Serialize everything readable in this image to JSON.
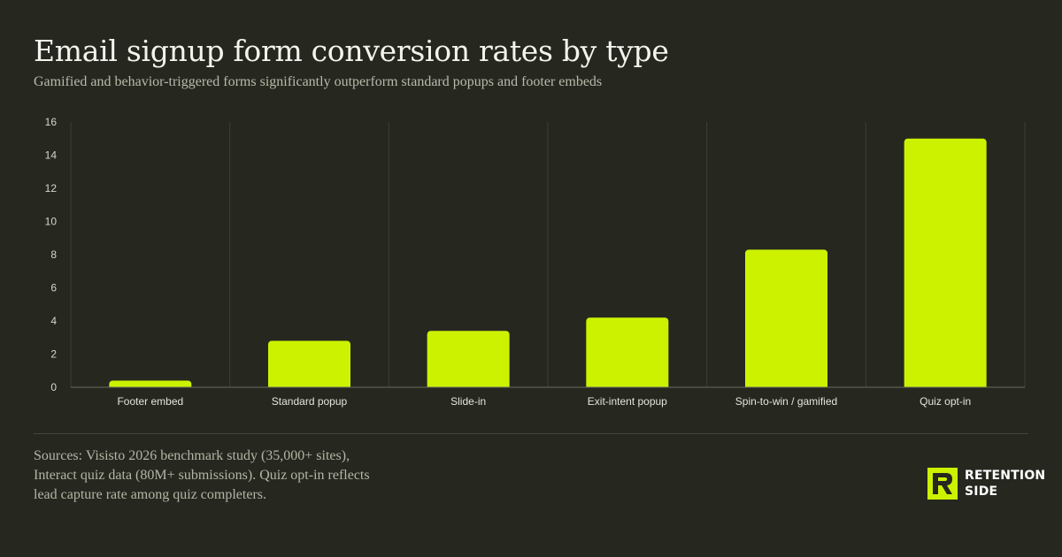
{
  "header": {
    "title": "Email signup form conversion rates by type",
    "subtitle": "Gamified and behavior-triggered forms significantly outperform standard popups and footer embeds"
  },
  "chart_data": {
    "type": "bar",
    "categories": [
      "Footer embed",
      "Standard popup",
      "Slide-in",
      "Exit-intent popup",
      "Spin-to-win / gamified",
      "Quiz opt-in"
    ],
    "values": [
      0.4,
      2.8,
      3.4,
      4.2,
      8.3,
      15.0
    ],
    "ylim": [
      0,
      16
    ],
    "yticks": [
      0,
      2,
      4,
      6,
      8,
      10,
      12,
      14,
      16
    ],
    "xlabel": "",
    "ylabel": "",
    "grid": "vertical",
    "bar_color": "#cdf200"
  },
  "footer": {
    "sources": "Sources: Visisto 2026 benchmark study (35,000+ sites), Interact quiz data (80M+ submissions). Quiz opt-in reflects lead capture rate among quiz completers."
  },
  "logo": {
    "line1": "RETENTION",
    "line2": "SIDE",
    "mark_color": "#cdf200"
  }
}
